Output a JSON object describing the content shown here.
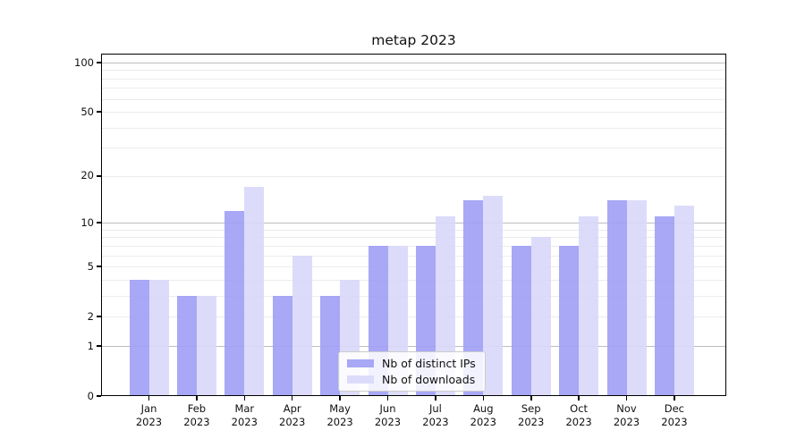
{
  "chart_data": {
    "type": "bar",
    "title": "metap 2023",
    "months": [
      "Jan",
      "Feb",
      "Mar",
      "Apr",
      "May",
      "Jun",
      "Jul",
      "Aug",
      "Sep",
      "Oct",
      "Nov",
      "Dec"
    ],
    "year": "2023",
    "categories": [
      "Jan 2023",
      "Feb 2023",
      "Mar 2023",
      "Apr 2023",
      "May 2023",
      "Jun 2023",
      "Jul 2023",
      "Aug 2023",
      "Sep 2023",
      "Oct 2023",
      "Nov 2023",
      "Dec 2023"
    ],
    "series": [
      {
        "name": "Nb of distinct IPs",
        "color": "#9e9ef5",
        "values": [
          4,
          3,
          12,
          3,
          3,
          7,
          7,
          14,
          7,
          7,
          14,
          11
        ]
      },
      {
        "name": "Nb of downloads",
        "color": "#d8d8f9",
        "values": [
          4,
          3,
          17,
          6,
          4,
          7,
          11,
          15,
          8,
          11,
          14,
          13
        ]
      }
    ],
    "y_axis": {
      "scale": "log1p",
      "ticks": [
        0,
        1,
        2,
        5,
        10,
        20,
        50,
        100
      ],
      "major_gridlines": [
        1,
        10,
        100
      ],
      "minor_gridlines": [
        2,
        3,
        4,
        5,
        6,
        7,
        8,
        9,
        20,
        30,
        40,
        50,
        60,
        70,
        80,
        90
      ],
      "ylim": [
        0,
        113
      ]
    },
    "x_axis": {
      "label_format": "two-line month over year"
    },
    "legend": {
      "position": "lower center inside plot"
    },
    "grid": true,
    "colors": {
      "major_grid": "#bdbdbd",
      "minor_grid": "#ececec",
      "spine": "#000000",
      "background": "#ffffff"
    }
  }
}
